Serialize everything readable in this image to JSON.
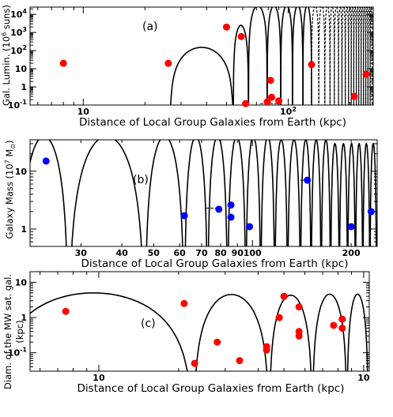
{
  "chart_data": [
    {
      "type": "scatter",
      "panel_label": "(a)",
      "xlabel": "Distance of Local Group Galaxies from Earth (kpc)",
      "ylabel": "Gal. Lumin. (10^6 suns)",
      "ylabel_parts": [
        "Gal. Lumin. (10",
        "6",
        " suns)"
      ],
      "x_scale": "log",
      "y_scale": "log",
      "xlim": [
        5.5,
        260
      ],
      "ylim": [
        0.1,
        25000
      ],
      "x_ticks": [
        {
          "v": 10,
          "t": "10"
        },
        {
          "v": 100,
          "t": "10",
          "sup": "2"
        }
      ],
      "y_ticks": [
        {
          "v": 0.1,
          "t": "10",
          "sup": "-1"
        },
        {
          "v": 1,
          "t": "1"
        },
        {
          "v": 10,
          "t": "10"
        },
        {
          "v": 100,
          "t": "10",
          "sup": "2"
        },
        {
          "v": 1000,
          "t": "10",
          "sup": "3"
        },
        {
          "v": 10000,
          "t": "10",
          "sup": "4"
        }
      ],
      "curve": {
        "zeros": [
          26.5,
          54,
          64,
          79,
          92,
          105,
          118,
          130,
          141,
          151,
          160,
          168,
          176,
          183,
          190,
          197,
          203,
          209,
          215,
          221,
          227,
          233,
          239,
          245,
          251,
          257
        ],
        "peaks": [
          150,
          2500,
          30000,
          30000,
          30000,
          30000,
          30000,
          30000,
          30000,
          30000,
          30000,
          30000,
          30000,
          30000,
          30000,
          30000,
          30000,
          30000,
          30000,
          30000,
          30000,
          30000,
          30000,
          30000,
          30000,
          30000
        ],
        "dashed_from": 130
      },
      "series": [
        {
          "color": "#ff0000",
          "points": [
            [
              8,
              20
            ],
            [
              26,
              20
            ],
            [
              50,
              2000
            ],
            [
              59,
              600
            ],
            [
              62,
              0.12
            ],
            [
              79,
              0.15
            ],
            [
              82,
              2.3
            ],
            [
              83,
              0.27
            ],
            [
              90,
              0.17
            ],
            [
              130,
              17
            ],
            [
              210,
              0.3
            ],
            [
              240,
              5
            ]
          ]
        }
      ],
      "error_bars": [
        {
          "x": 83,
          "y": 0.12,
          "xmin": 73,
          "xmax": 92
        }
      ]
    },
    {
      "type": "scatter",
      "panel_label": "(b)",
      "xlabel": "Distance of Local Group Galaxies from Earth (kpc)",
      "ylabel": "Galaxy Mass (10^7 M⊙)",
      "ylabel_parts": [
        "Galaxy Mass (10",
        "7",
        " M",
        "⊙",
        ")"
      ],
      "x_scale": "log",
      "y_scale": "log",
      "xlim": [
        21,
        240
      ],
      "ylim": [
        0.5,
        35
      ],
      "x_ticks": [
        {
          "v": 30,
          "t": "30"
        },
        {
          "v": 40,
          "t": "40"
        },
        {
          "v": 50,
          "t": "50"
        },
        {
          "v": 60,
          "t": "60"
        },
        {
          "v": 70,
          "t": "70"
        },
        {
          "v": 80,
          "t": "80"
        },
        {
          "v": 90,
          "t": "90"
        },
        {
          "v": 100,
          "t": "100"
        },
        {
          "v": 200,
          "t": "200"
        }
      ],
      "y_ticks": [
        {
          "v": 1,
          "t": "1"
        },
        {
          "v": 10,
          "t": "10"
        }
      ],
      "curve": {
        "zeros": [
          19.5,
          27.5,
          47,
          62,
          73,
          84,
          95.5,
          106,
          117,
          128,
          140,
          151,
          162,
          173,
          184,
          195,
          206,
          217,
          228,
          239
        ],
        "peaks": [
          40,
          40,
          40,
          40,
          40,
          40,
          40,
          40,
          35,
          35,
          35,
          35,
          35,
          30,
          30,
          30,
          30,
          30,
          30,
          30
        ]
      },
      "series": [
        {
          "color": "#0000ff",
          "points": [
            [
              23.5,
              15
            ],
            [
              62,
              1.7
            ],
            [
              79,
              2.2
            ],
            [
              86,
              2.6
            ],
            [
              86,
              1.6
            ],
            [
              98,
              1.1
            ],
            [
              147,
              7
            ],
            [
              200,
              1.1
            ],
            [
              230,
              2
            ]
          ]
        }
      ],
      "error_bars": [
        {
          "x": 80,
          "y": 2.3,
          "xmin": 72,
          "xmax": 80
        },
        {
          "x": 147,
          "y": 7,
          "xmin": 140,
          "xmax": 150
        }
      ]
    },
    {
      "type": "scatter",
      "panel_label": "(c)",
      "xlabel": "Distance of Local Group Galaxies from Earth (kpc)",
      "ylabel": "Diam. of the MW sat. gal. (kpc)",
      "ylabel_lines": [
        "Diam. of the MW sat. gal.",
        "(kpc)"
      ],
      "x_scale": "log",
      "y_scale": "log",
      "xlim": [
        5.5,
        105
      ],
      "ylim": [
        0.03,
        20
      ],
      "x_ticks": [
        {
          "v": 10,
          "t": "10"
        },
        {
          "v": 100,
          "t": "10"
        }
      ],
      "y_ticks": [
        {
          "v": 0.1,
          "t": "10",
          "sup": "-1"
        },
        {
          "v": 1,
          "t": "1"
        },
        {
          "v": 10,
          "t": "10"
        }
      ],
      "curve": {
        "zeros": [
          4,
          22.8,
          44,
          64,
          86.5,
          104
        ],
        "peaks": [
          5,
          4.5,
          4.3,
          4.6,
          4.6,
          4.6
        ]
      },
      "series": [
        {
          "color": "#ff0000",
          "points": [
            [
              7.5,
              1.5
            ],
            [
              21,
              2.5
            ],
            [
              23,
              0.05
            ],
            [
              28,
              0.2
            ],
            [
              34,
              0.06
            ],
            [
              43,
              0.12
            ],
            [
              43,
              0.15
            ],
            [
              48,
              1
            ],
            [
              50,
              4
            ],
            [
              57,
              0.4
            ],
            [
              57,
              0.3
            ],
            [
              57,
              2
            ],
            [
              77,
              0.6
            ],
            [
              83,
              0.9
            ],
            [
              83,
              0.5
            ]
          ]
        }
      ],
      "error_bars": []
    }
  ]
}
